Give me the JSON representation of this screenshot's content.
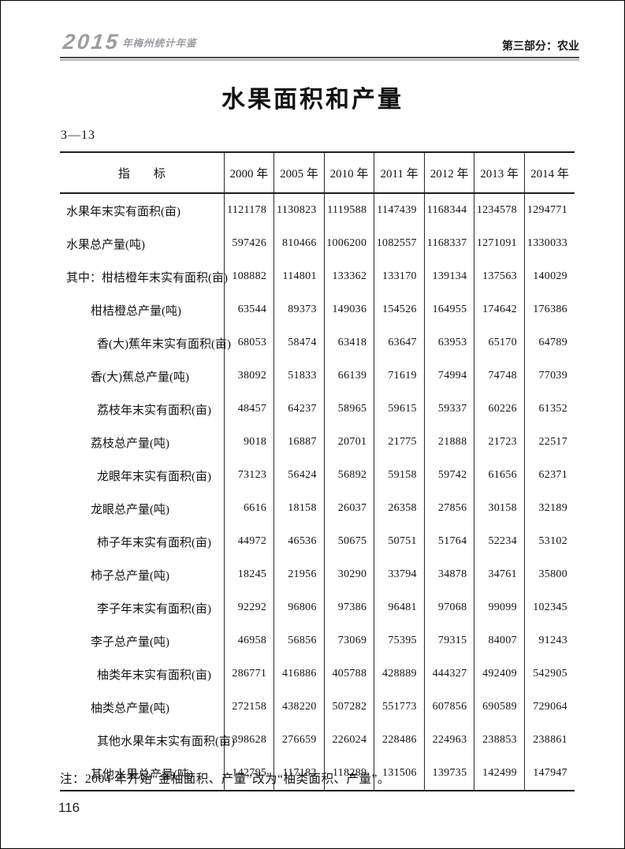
{
  "masthead": {
    "yearbook_year": "2015",
    "yearbook_title": "年梅州统计年鉴",
    "section": "第三部分：农业"
  },
  "page": {
    "title": "水果面积和产量",
    "table_number": "3—13",
    "note": "注：2004 年开始“金柚面积、产量”改为“柚类面积、产量”。",
    "page_number": "116"
  },
  "colors": {
    "logo_gray": "#9b9da0",
    "rule_dark": "#4b4b4b",
    "rule_light": "#b4b6b8",
    "table_line": "#1e1e1e",
    "text": "#141414"
  },
  "table": {
    "indicator_header": "指　　标",
    "columns": [
      "2000 年",
      "2005 年",
      "2010 年",
      "2011 年",
      "2012 年",
      "2013 年",
      "2014 年"
    ],
    "rows": [
      {
        "label": "水果年末实有面积(亩)",
        "indent": 0,
        "values": [
          "1121178",
          "1130823",
          "1119588",
          "1147439",
          "1168344",
          "1234578",
          "1294771"
        ]
      },
      {
        "label": "水果总产量(吨)",
        "indent": 0,
        "values": [
          "597426",
          "810466",
          "1006200",
          "1082557",
          "1168337",
          "1271091",
          "1330033"
        ]
      },
      {
        "label": "其中：柑桔橙年末实有面积(亩)",
        "indent": 0,
        "values": [
          "108882",
          "114801",
          "133362",
          "133170",
          "139134",
          "137563",
          "140029"
        ]
      },
      {
        "label": "柑桔橙总产量(吨)",
        "indent": 1,
        "values": [
          "63544",
          "89373",
          "149036",
          "154526",
          "164955",
          "174642",
          "176386"
        ]
      },
      {
        "label": "香(大)蕉年末实有面积(亩)",
        "indent": 2,
        "values": [
          "68053",
          "58474",
          "63418",
          "63647",
          "63953",
          "65170",
          "64789"
        ]
      },
      {
        "label": "香(大)蕉总产量(吨)",
        "indent": 1,
        "values": [
          "38092",
          "51833",
          "66139",
          "71619",
          "74994",
          "74748",
          "77039"
        ]
      },
      {
        "label": "荔枝年末实有面积(亩)",
        "indent": 2,
        "values": [
          "48457",
          "64237",
          "58965",
          "59615",
          "59337",
          "60226",
          "61352"
        ]
      },
      {
        "label": "荔枝总产量(吨)",
        "indent": 1,
        "values": [
          "9018",
          "16887",
          "20701",
          "21775",
          "21888",
          "21723",
          "22517"
        ]
      },
      {
        "label": "龙眼年末实有面积(亩)",
        "indent": 2,
        "values": [
          "73123",
          "56424",
          "56892",
          "59158",
          "59742",
          "61656",
          "62371"
        ]
      },
      {
        "label": "龙眼总产量(吨)",
        "indent": 1,
        "values": [
          "6616",
          "18158",
          "26037",
          "26358",
          "27856",
          "30158",
          "32189"
        ]
      },
      {
        "label": "柿子年末实有面积(亩)",
        "indent": 2,
        "values": [
          "44972",
          "46536",
          "50675",
          "50751",
          "51764",
          "52234",
          "53102"
        ]
      },
      {
        "label": "柿子总产量(吨)",
        "indent": 1,
        "values": [
          "18245",
          "21956",
          "30290",
          "33794",
          "34878",
          "34761",
          "35800"
        ]
      },
      {
        "label": "李子年末实有面积(亩)",
        "indent": 2,
        "values": [
          "92292",
          "96806",
          "97386",
          "96481",
          "97068",
          "99099",
          "102345"
        ]
      },
      {
        "label": "李子总产量(吨)",
        "indent": 1,
        "values": [
          "46958",
          "56856",
          "73069",
          "75395",
          "79315",
          "84007",
          "91243"
        ]
      },
      {
        "label": "柚类年末实有面积(亩)",
        "indent": 2,
        "values": [
          "286771",
          "416886",
          "405788",
          "428889",
          "444327",
          "492409",
          "542905"
        ]
      },
      {
        "label": "柚类总产量(吨)",
        "indent": 1,
        "values": [
          "272158",
          "438220",
          "507282",
          "551773",
          "607856",
          "690589",
          "729064"
        ]
      },
      {
        "label": "其他水果年末实有面积(亩)",
        "indent": 2,
        "values": [
          "398628",
          "276659",
          "226024",
          "228486",
          "224963",
          "238853",
          "238861"
        ]
      },
      {
        "label": "其他水果总产量(吨)",
        "indent": 1,
        "values": [
          "142795",
          "117183",
          "118289",
          "131506",
          "139735",
          "142499",
          "147947"
        ]
      }
    ]
  }
}
